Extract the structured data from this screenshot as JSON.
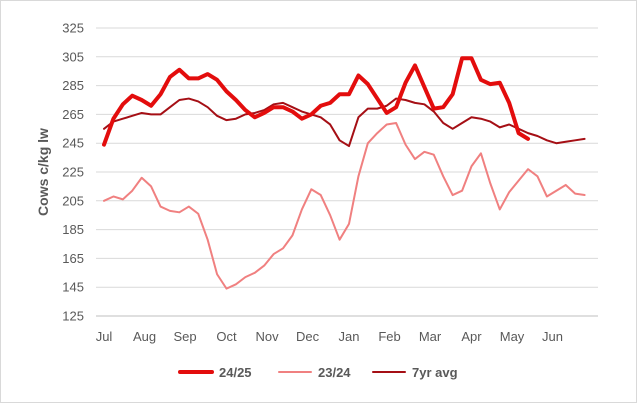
{
  "chart_data": {
    "type": "line",
    "title": "",
    "xlabel": "",
    "ylabel": "Cows c/kg lw",
    "ylim": [
      125,
      325
    ],
    "yticks": [
      125,
      145,
      165,
      185,
      205,
      225,
      245,
      265,
      285,
      305,
      325
    ],
    "grid": true,
    "legend_position": "bottom",
    "x_count": 53,
    "month_ticks": [
      {
        "label": "Jul",
        "index": 0
      },
      {
        "label": "Aug",
        "index": 4.3
      },
      {
        "label": "Sep",
        "index": 8.6
      },
      {
        "label": "Oct",
        "index": 13
      },
      {
        "label": "Nov",
        "index": 17.3
      },
      {
        "label": "Dec",
        "index": 21.6
      },
      {
        "label": "Jan",
        "index": 26
      },
      {
        "label": "Feb",
        "index": 30.3
      },
      {
        "label": "Mar",
        "index": 34.6
      },
      {
        "label": "Apr",
        "index": 39
      },
      {
        "label": "May",
        "index": 43.3
      },
      {
        "label": "Jun",
        "index": 47.6
      }
    ],
    "series": [
      {
        "name": "24/25",
        "color": "#e30d0d",
        "values": [
          244,
          262,
          272,
          278,
          275,
          271,
          279,
          291,
          296,
          290,
          290,
          293,
          289,
          281,
          275,
          268,
          263,
          266,
          270,
          270,
          267,
          262,
          265,
          271,
          273,
          279,
          279,
          292,
          286,
          276,
          266,
          270,
          287,
          299,
          284,
          269,
          270,
          279,
          304,
          304,
          289,
          286,
          287,
          273,
          252,
          248,
          null,
          null,
          null,
          null,
          null,
          null,
          null
        ]
      },
      {
        "name": "23/24",
        "color": "#f08080",
        "values": [
          205,
          208,
          206,
          212,
          221,
          215,
          201,
          198,
          197,
          201,
          196,
          178,
          154,
          144,
          147,
          152,
          155,
          160,
          168,
          172,
          181,
          199,
          213,
          209,
          195,
          178,
          189,
          222,
          245,
          252,
          258,
          259,
          244,
          234,
          239,
          237,
          222,
          209,
          212,
          229,
          238,
          217,
          199,
          211,
          219,
          227,
          222,
          208,
          212,
          216,
          210,
          209,
          null
        ]
      },
      {
        "name": "7yr avg",
        "color": "#a50f15",
        "values": [
          255,
          260,
          262,
          264,
          266,
          265,
          265,
          270,
          275,
          276,
          274,
          270,
          264,
          261,
          262,
          265,
          266,
          268,
          272,
          273,
          270,
          267,
          265,
          263,
          258,
          247,
          243,
          263,
          269,
          269,
          271,
          276,
          275,
          273,
          272,
          267,
          259,
          255,
          259,
          263,
          262,
          260,
          256,
          258,
          255,
          252,
          250,
          247,
          245,
          246,
          247,
          248,
          null
        ]
      }
    ]
  }
}
